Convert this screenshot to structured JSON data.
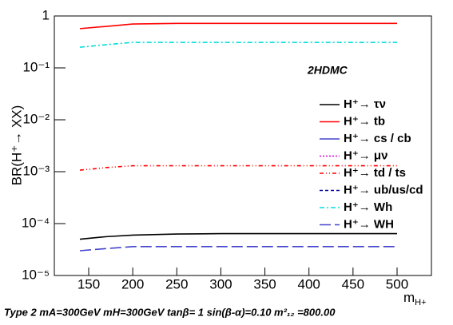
{
  "chart_data": {
    "type": "line",
    "y_label": "BR(H⁺→ XX)",
    "x_label": {
      "main": "m",
      "sub": "H+"
    },
    "annotation": "2HDMC",
    "footer": "Type 2 mA=300GeV mH=300GeV tanβ= 1 sin(β-α)=0.10 m²₁₂ =800.00",
    "log_y": true,
    "x": [
      140,
      170,
      200,
      250,
      300,
      350,
      400,
      450,
      500
    ],
    "xlim": [
      111,
      539
    ],
    "xticks": [
      150,
      200,
      250,
      300,
      350,
      400,
      450,
      500
    ],
    "ylim": [
      1e-05,
      1
    ],
    "yticks": [
      {
        "value": 1e-05,
        "label": "10⁻⁵"
      },
      {
        "value": 0.0001,
        "label": "10⁻⁴"
      },
      {
        "value": 0.001,
        "label": "10⁻³"
      },
      {
        "value": 0.01,
        "label": "10⁻²"
      },
      {
        "value": 0.1,
        "label": "10⁻¹"
      },
      1
    ],
    "series": [
      {
        "name": "H⁺→ τν",
        "color": "#000000",
        "dash": "none",
        "values": [
          5e-05,
          5.6e-05,
          6e-05,
          6.3e-05,
          6.4e-05,
          6.4e-05,
          6.4e-05,
          6.4e-05,
          6.4e-05
        ]
      },
      {
        "name": "H⁺→ tb",
        "color": "#ff0000",
        "dash": "none",
        "values": [
          0.57,
          0.63,
          0.7,
          0.72,
          0.72,
          0.72,
          0.72,
          0.72,
          0.72
        ]
      },
      {
        "name": "H⁺→ cs / cb",
        "color": "#4444cc",
        "dash": "none",
        "values": [
          null,
          null,
          null,
          null,
          null,
          null,
          null,
          null,
          null
        ]
      },
      {
        "name": "H⁺→ μν",
        "color": "#dd00dd",
        "dash": "2,2",
        "values": [
          null,
          null,
          null,
          null,
          null,
          null,
          null,
          null,
          null
        ]
      },
      {
        "name": "H⁺→ td / ts",
        "color": "#ff0000",
        "dash": "5,3,1,3,1,3",
        "values": [
          0.00107,
          0.0012,
          0.0013,
          0.0013,
          0.0013,
          0.0013,
          0.0013,
          0.0013,
          0.0013
        ]
      },
      {
        "name": "H⁺→ ub/us/cd",
        "color": "#000099",
        "dash": "4,3",
        "values": [
          null,
          null,
          null,
          null,
          null,
          null,
          null,
          null,
          null
        ]
      },
      {
        "name": "H⁺→ Wh",
        "color": "#00dddd",
        "dash": "6,3,2,3",
        "values": [
          0.25,
          0.28,
          0.31,
          0.31,
          0.31,
          0.31,
          0.31,
          0.31,
          0.31
        ]
      },
      {
        "name": "H⁺→ WH",
        "color": "#4444cc",
        "dash": "14,5",
        "values": [
          3e-05,
          3.3e-05,
          3.6e-05,
          3.6e-05,
          3.6e-05,
          3.6e-05,
          3.6e-05,
          3.6e-05,
          3.6e-05
        ]
      }
    ]
  }
}
